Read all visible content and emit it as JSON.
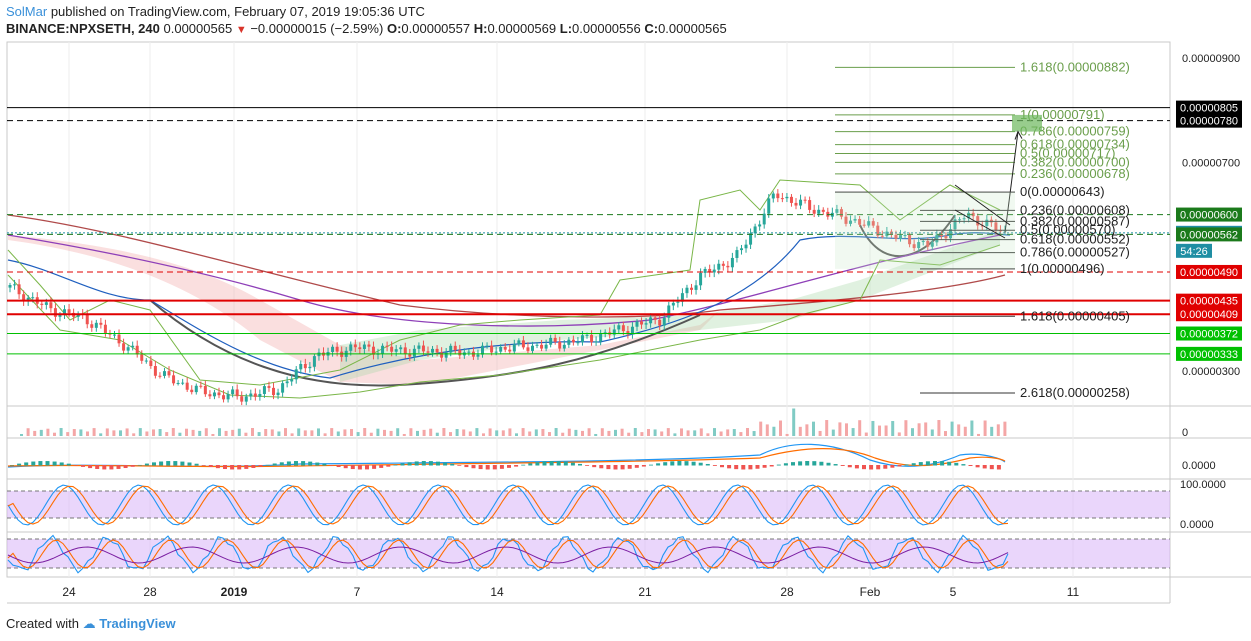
{
  "header": {
    "author": "SolMar",
    "published": "published on TradingView.com, February 07, 2019 19:05:36 UTC",
    "symbol": "BINANCE:NPXSETH, 240",
    "last": "0.00000565",
    "change": "−0.00000015 (−2.59%)",
    "o_label": "O:",
    "o": "0.00000557",
    "h_label": "H:",
    "h": "0.00000569",
    "l_label": "L:",
    "l": "0.00000556",
    "c_label": "C:",
    "c": "0.00000565"
  },
  "footer": {
    "created_with": "Created with",
    "brand": "TradingView"
  },
  "colors": {
    "up": "#26a69a",
    "down": "#ef5350",
    "fib": "#6a9e4b",
    "cloud_green": "#a5d6a7",
    "cloud_red": "#f2a4a4",
    "bb": "#7ab648",
    "stoch_k": "#2196f3",
    "stoch_d": "#ff6d00",
    "rsi_band": "#d8b4f8"
  },
  "chart_data": {
    "type": "candlestick",
    "x_tick_labels": [
      "24",
      "28",
      "2019",
      "7",
      "14",
      "21",
      "28",
      "Feb",
      "5",
      "11"
    ],
    "price_axis_ticks": [
      "0.00000900",
      "0.00000700",
      "0.00000300"
    ],
    "price_axis_range": [
      2.35e-06,
      9.25e-06
    ],
    "price_markers": [
      {
        "value": "0.00000805",
        "bg": "#000000",
        "fg": "#ffffff"
      },
      {
        "value": "0.00000780",
        "bg": "#000000",
        "fg": "#ffffff"
      },
      {
        "value": "0.00000600",
        "bg": "#1b7a1b",
        "fg": "#ffffff"
      },
      {
        "value": "0.00000565",
        "bg": "#1f8ea3",
        "fg": "#ffffff"
      },
      {
        "value": "54:26",
        "bg": "#1f8ea3",
        "fg": "#ffffff"
      },
      {
        "value": "0.00000562",
        "bg": "#1b7a1b",
        "fg": "#ffffff"
      },
      {
        "value": "0.00000490",
        "bg": "#e00000",
        "fg": "#ffffff"
      },
      {
        "value": "0.00000435",
        "bg": "#e00000",
        "fg": "#ffffff"
      },
      {
        "value": "0.00000409",
        "bg": "#e00000",
        "fg": "#ffffff"
      },
      {
        "value": "0.00000372",
        "bg": "#00c000",
        "fg": "#ffffff"
      },
      {
        "value": "0.00000333",
        "bg": "#00c000",
        "fg": "#ffffff"
      }
    ],
    "fib_extension_labels": [
      "1.618(0.00000882)",
      "1(0.00000791)",
      "0.786(0.00000759)",
      "0.618(0.00000734)",
      "0.5(0.00000717)",
      "0.382(0.00000700)",
      "0.236(0.00000678)"
    ],
    "fib_retracement_labels": [
      "0(0.00000643)",
      "0.236(0.00000608)",
      "0.382(0.00000587)",
      "0.5(0.00000570)",
      "0.618(0.00000552)",
      "0.786(0.00000527)",
      "1(0.00000496)",
      "1.618(0.00000405)",
      "2.618(0.00000258)"
    ],
    "indicator_ticks": {
      "volume": "0",
      "macd": "0.0000",
      "stoch_top": "100.0000",
      "stoch_bottom": "0.0000"
    },
    "candles_close": [
      4.6e-06,
      4.2e-06,
      4e-06,
      3.5e-06,
      2.9e-06,
      2.6e-06,
      2.5e-06,
      2.65e-06,
      3.3e-06,
      3.45e-06,
      3.4e-06,
      3.38e-06,
      3.35e-06,
      3.45e-06,
      3.5e-06,
      3.6e-06,
      3.8e-06,
      4e-06,
      4.8e-06,
      5.2e-06,
      6.4e-06,
      6.1e-06,
      5.9e-06,
      5.6e-06,
      5.4e-06,
      6e-06,
      5.65e-06
    ]
  }
}
